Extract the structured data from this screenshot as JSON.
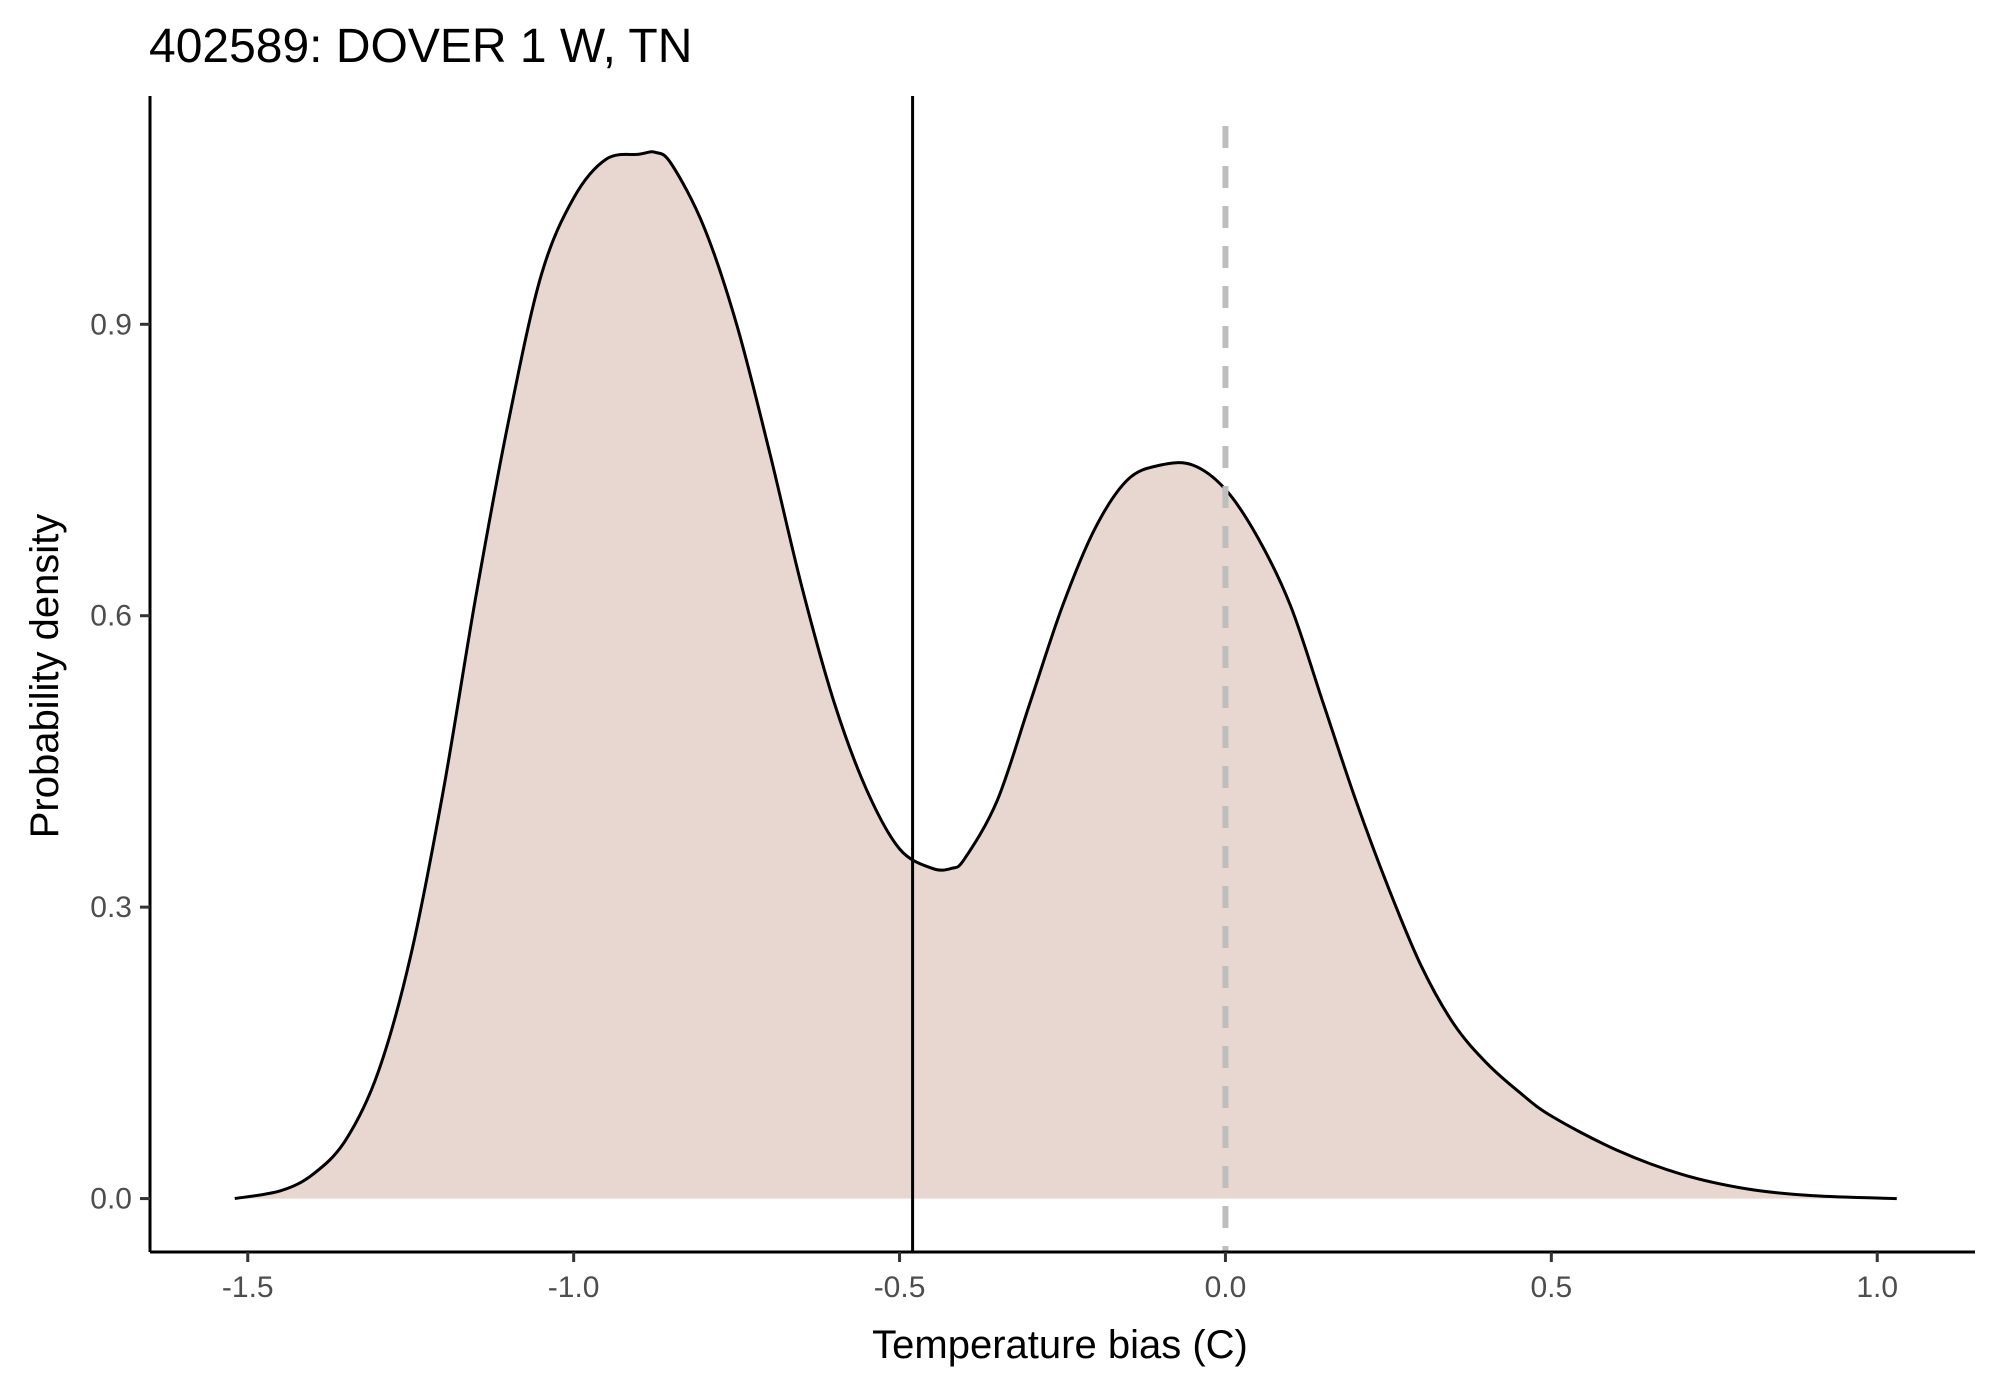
{
  "chart_data": {
    "type": "area",
    "title": "402589: DOVER 1 W, TN",
    "xlabel": "Temperature bias (C)",
    "ylabel": "Probability density",
    "xlim": [
      -1.65,
      1.15
    ],
    "ylim": [
      -0.055,
      1.135
    ],
    "x_ticks": [
      -1.5,
      -1.0,
      -0.5,
      0.0,
      0.5,
      1.0
    ],
    "x_tick_labels": [
      "-1.5",
      "-1.0",
      "-0.5",
      "0.0",
      "0.5",
      "1.0"
    ],
    "y_ticks": [
      0.0,
      0.3,
      0.6,
      0.9
    ],
    "y_tick_labels": [
      "0.0",
      "0.3",
      "0.6",
      "0.9"
    ],
    "grid": false,
    "series": [
      {
        "x": [
          -1.52,
          -1.45,
          -1.4,
          -1.35,
          -1.3,
          -1.25,
          -1.2,
          -1.15,
          -1.1,
          -1.05,
          -1.0,
          -0.95,
          -0.9,
          -0.875,
          -0.85,
          -0.8,
          -0.75,
          -0.7,
          -0.65,
          -0.6,
          -0.55,
          -0.5,
          -0.45,
          -0.42,
          -0.4,
          -0.35,
          -0.3,
          -0.25,
          -0.2,
          -0.15,
          -0.1,
          -0.05,
          0.0,
          0.05,
          0.1,
          0.15,
          0.2,
          0.25,
          0.3,
          0.35,
          0.4,
          0.45,
          0.5,
          0.6,
          0.7,
          0.8,
          0.9,
          1.03
        ],
        "y": [
          0.0,
          0.008,
          0.025,
          0.06,
          0.13,
          0.25,
          0.42,
          0.62,
          0.8,
          0.95,
          1.03,
          1.07,
          1.075,
          1.077,
          1.065,
          1.0,
          0.9,
          0.77,
          0.63,
          0.51,
          0.42,
          0.36,
          0.34,
          0.34,
          0.35,
          0.41,
          0.51,
          0.61,
          0.69,
          0.74,
          0.755,
          0.755,
          0.73,
          0.68,
          0.61,
          0.51,
          0.41,
          0.32,
          0.24,
          0.18,
          0.14,
          0.11,
          0.085,
          0.05,
          0.025,
          0.01,
          0.003,
          0.0
        ],
        "fill": "#e8d6d1",
        "line_color": "#000000"
      }
    ],
    "reference_lines": [
      {
        "x": -0.48,
        "style": "solid",
        "color": "#000000"
      },
      {
        "x": 0.0,
        "style": "dashed",
        "color": "#bebebe"
      }
    ]
  }
}
